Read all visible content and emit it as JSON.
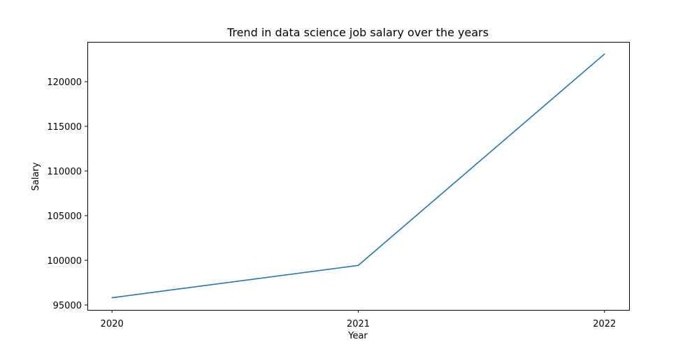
{
  "chart_data": {
    "type": "line",
    "title": "Trend in data science job salary over the years",
    "xlabel": "Year",
    "ylabel": "Salary",
    "x": [
      2020,
      2021,
      2022
    ],
    "x_tick_labels": [
      "2020",
      "2021",
      "2022"
    ],
    "series": [
      {
        "values": [
          95813,
          99431,
          123097
        ],
        "color": "#1f77b4"
      }
    ],
    "y_ticks": [
      95000,
      100000,
      105000,
      110000,
      115000,
      120000
    ],
    "y_tick_labels": [
      "95000",
      "100000",
      "105000",
      "110000",
      "115000",
      "120000"
    ],
    "ylim": [
      94450,
      124460
    ],
    "xlim": [
      2019.9,
      2022.1
    ],
    "grid": false,
    "legend": "none"
  }
}
